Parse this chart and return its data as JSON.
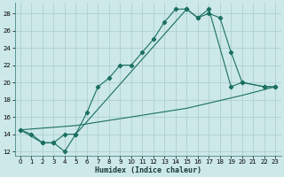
{
  "title": "",
  "xlabel": "Humidex (Indice chaleur)",
  "ylabel": "",
  "xlim": [
    -0.5,
    23.5
  ],
  "ylim": [
    11.5,
    29.2
  ],
  "xticks": [
    0,
    1,
    2,
    3,
    4,
    5,
    6,
    7,
    8,
    9,
    10,
    11,
    12,
    13,
    14,
    15,
    16,
    17,
    18,
    19,
    20,
    21,
    22,
    23
  ],
  "yticks": [
    12,
    14,
    16,
    18,
    20,
    22,
    24,
    26,
    28
  ],
  "background_color": "#cce8e8",
  "grid_color": "#b0d0d0",
  "line_color": "#1a7060",
  "series1_x": [
    0,
    1,
    2,
    3,
    4,
    5,
    6,
    7,
    8,
    9,
    10,
    11,
    12,
    13,
    14,
    15,
    16,
    17,
    18,
    19,
    20,
    22,
    23
  ],
  "series1_y": [
    14.5,
    14.0,
    13.0,
    13.0,
    12.0,
    14.0,
    16.5,
    19.5,
    20.5,
    22.0,
    22.0,
    23.5,
    25.0,
    27.0,
    28.5,
    28.5,
    27.5,
    28.0,
    27.5,
    23.5,
    20.0,
    19.5,
    19.5
  ],
  "series2_x": [
    0,
    2,
    3,
    4,
    5,
    15,
    16,
    17,
    19,
    20,
    22,
    23
  ],
  "series2_y": [
    14.5,
    13.0,
    13.0,
    14.0,
    14.0,
    28.5,
    27.5,
    28.5,
    19.5,
    20.0,
    19.5,
    19.5
  ],
  "series3_x": [
    0,
    5,
    10,
    15,
    20,
    23
  ],
  "series3_y": [
    14.5,
    15.0,
    16.0,
    17.0,
    18.5,
    19.5
  ]
}
